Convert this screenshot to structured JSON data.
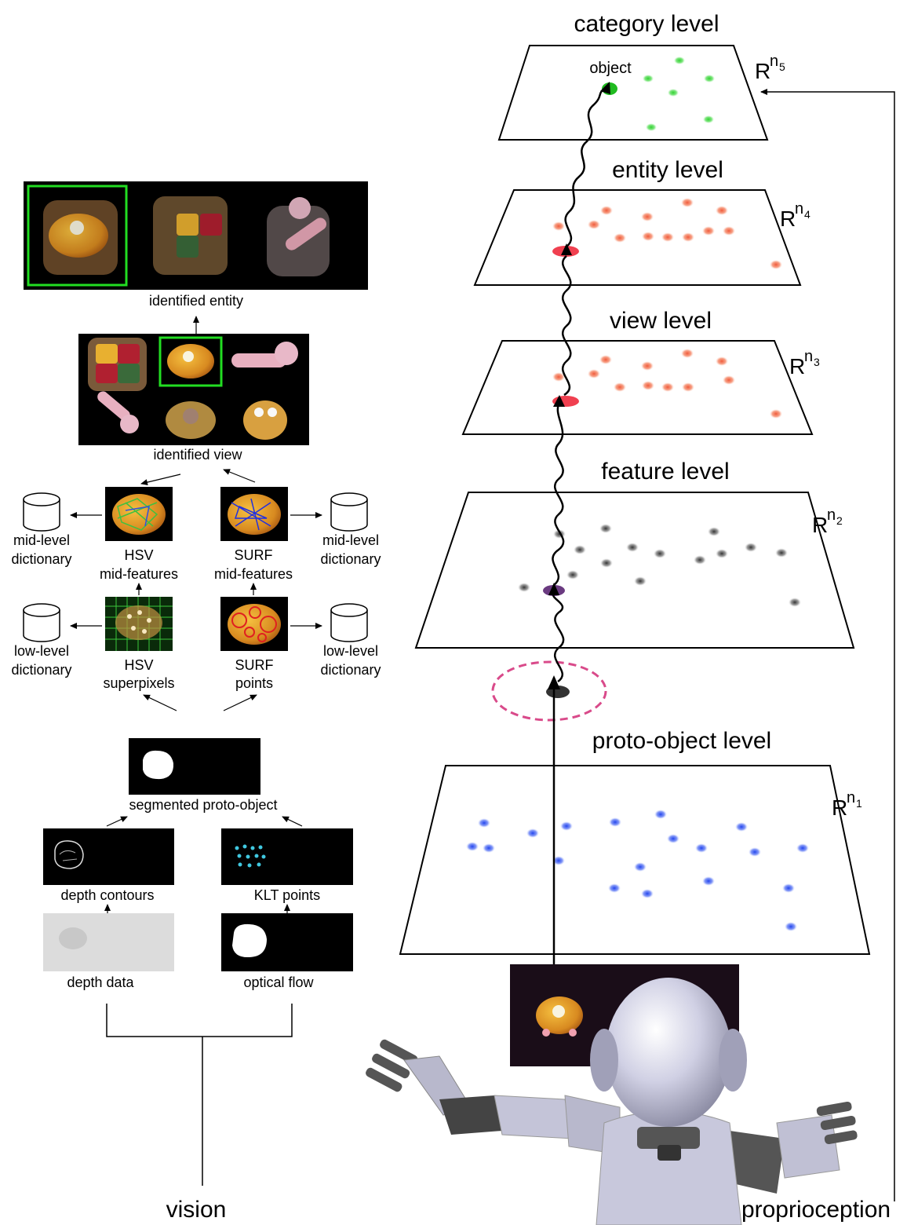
{
  "levels": [
    {
      "title": "category level",
      "space_base": "R",
      "space_exp": "n",
      "space_sub": "5",
      "point_label": "object"
    },
    {
      "title": "entity level",
      "space_base": "R",
      "space_exp": "n",
      "space_sub": "4"
    },
    {
      "title": "view level",
      "space_base": "R",
      "space_exp": "n",
      "space_sub": "3"
    },
    {
      "title": "feature level",
      "space_base": "R",
      "space_exp": "n",
      "space_sub": "2"
    },
    {
      "title": "proto-object level",
      "space_base": "R",
      "space_exp": "n",
      "space_sub": "1"
    }
  ],
  "left_panel": {
    "identified_entity": "identified entity",
    "identified_view": "identified view",
    "hsv_mid": [
      "HSV",
      "mid-features"
    ],
    "surf_mid": [
      "SURF",
      "mid-features"
    ],
    "hsv_low": [
      "HSV",
      "superpixels"
    ],
    "surf_low": [
      "SURF",
      "points"
    ],
    "mid_dict_left": [
      "mid-level",
      "dictionary"
    ],
    "mid_dict_right": [
      "mid-level",
      "dictionary"
    ],
    "low_dict_left": [
      "low-level",
      "dictionary"
    ],
    "low_dict_right": [
      "low-level",
      "dictionary"
    ],
    "segmented": "segmented proto-object",
    "depth_contours": "depth contours",
    "klt_points": "KLT points",
    "depth_data": "depth data",
    "optical_flow": "optical flow"
  },
  "bottom": {
    "vision": "vision",
    "proprioception": "proprioception"
  },
  "colors": {
    "category_points": "#3ccc3c",
    "entity_points": "#f26a4a",
    "view_points": "#f26a4a",
    "feature_points": "#555555",
    "proto_points": "#3355ee",
    "selected_proto": "#333333",
    "selected_feature": "#6a3a80",
    "selected_view": "#f04050",
    "attention_circle": "#d94a8a",
    "highlight_box": "#22dd22",
    "robot_body": "#c8c8dc"
  }
}
